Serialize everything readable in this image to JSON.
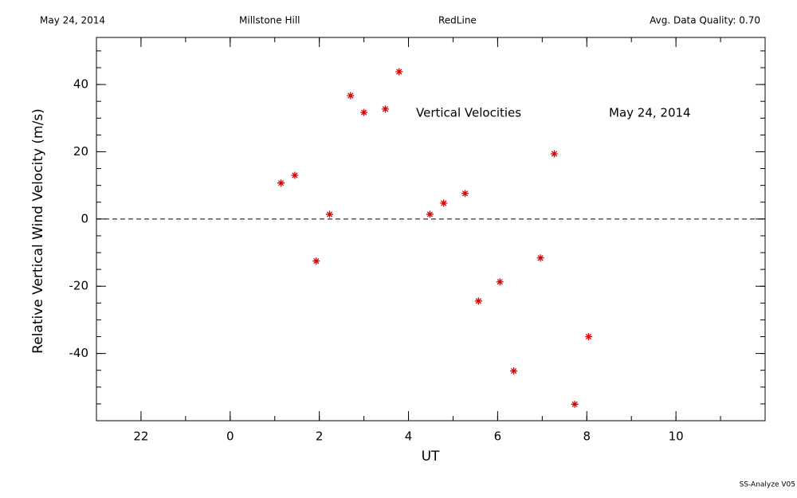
{
  "chart_data": {
    "type": "scatter",
    "header": [
      "May 24, 2014",
      "Millstone Hill",
      "RedLine",
      "Avg. Data Quality: 0.70"
    ],
    "annotations": [
      "Vertical Velocities",
      "May 24, 2014"
    ],
    "footer": "SS-Analyze V05",
    "xlabel": "UT",
    "ylabel": "Relative Vertical Wind Velocity (m/s)",
    "xlim": [
      -3,
      12
    ],
    "ylim": [
      -60,
      54
    ],
    "xticks": [
      {
        "value": -2,
        "label": "22"
      },
      0,
      2,
      4,
      6,
      8,
      10
    ],
    "yticks": [
      -40,
      -20,
      0,
      20,
      40
    ],
    "reference_line": 0,
    "series": [
      {
        "color": "#dd0000",
        "x": [
          1.14,
          1.45,
          1.93,
          2.23,
          2.7,
          3.0,
          3.48,
          3.79,
          4.48,
          4.79,
          5.27,
          5.57,
          6.05,
          6.36,
          6.96,
          7.27,
          7.73,
          8.04
        ],
        "values": [
          10.7,
          13.0,
          -12.5,
          1.4,
          36.7,
          31.7,
          32.7,
          43.8,
          1.4,
          4.7,
          7.6,
          -24.4,
          -18.7,
          -45.2,
          -11.6,
          19.4,
          -55.1,
          -35.0
        ]
      }
    ]
  }
}
